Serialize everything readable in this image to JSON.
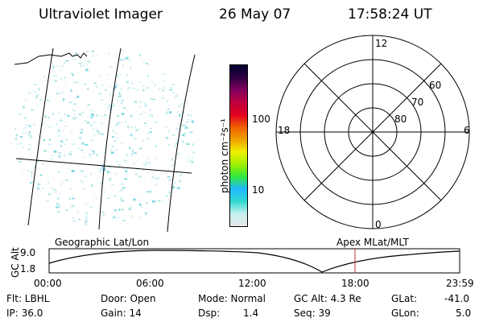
{
  "header": {
    "instrument": "Ultraviolet Imager",
    "date": "26 May 07",
    "time": "17:58:24 UT"
  },
  "colorbar": {
    "unit_label": "photon cm⁻²s⁻¹",
    "ticks": [
      "100",
      "10"
    ],
    "colors": [
      "#e8e8e8",
      "#c8f0f0",
      "#30d8d0",
      "#20b8ff",
      "#30e840",
      "#a0f000",
      "#f0f000",
      "#f0a000",
      "#f06000",
      "#e00020",
      "#c00040",
      "#800060",
      "#300040",
      "#000030"
    ],
    "scale": "log"
  },
  "polar_plot": {
    "mlt_labels": {
      "top": "12",
      "right": "6",
      "bottom": "0",
      "left": "18"
    },
    "lat_labels": [
      "60",
      "70",
      "80"
    ]
  },
  "timeline": {
    "left_title": "Geographic Lat/Lon",
    "right_title": "Apex MLat/MLT",
    "axis_label": "GC Alt",
    "y_ticks": [
      "9.0",
      "1.8"
    ],
    "x_ticks": [
      "00:00",
      "06:00",
      "12:00",
      "18:00",
      "23:59"
    ],
    "cursor_color": "#d03030"
  },
  "footer": {
    "flt": "Flt: LBHL",
    "ip": "IP: 36.0",
    "door": "Door: Open",
    "gain": "Gain: 14",
    "mode": "Mode: Normal",
    "dsp_label": "Dsp:",
    "dsp_value": "1.4",
    "gcalt": "GC Alt: 4.3 Re",
    "seq": "Seq: 39",
    "glat_label": "GLat:",
    "glat_value": "-41.0",
    "glon_label": "GLon:",
    "glon_value": "5.0"
  }
}
